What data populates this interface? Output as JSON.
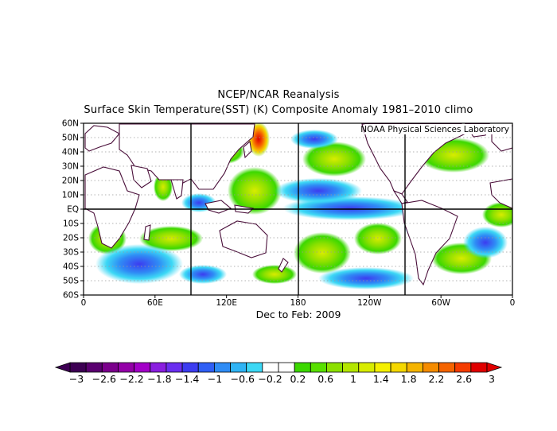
{
  "title": {
    "line1": "NCEP/NCAR Reanalysis",
    "line2": "Surface Skin Temperature(SST) (K) Composite Anomaly 1981–2010 climo"
  },
  "credit": "NOAA Physical Sciences Laboratory",
  "period": "Dec to Feb: 2009",
  "map": {
    "projection": "cylindrical",
    "lon_range": "0 to 360",
    "lat_range": "60S to 60N",
    "lat_labels": [
      "60N",
      "50N",
      "40N",
      "30N",
      "20N",
      "10N",
      "EQ",
      "10S",
      "20S",
      "30S",
      "40S",
      "50S",
      "60S"
    ],
    "lon_labels": [
      "0",
      "60E",
      "120E",
      "180",
      "120W",
      "60W",
      "0"
    ],
    "reference_lines": [
      "EQ",
      "90E",
      "180",
      "90W"
    ]
  },
  "colorbar": {
    "labels": [
      "−3",
      "−2.6",
      "−2.2",
      "−1.8",
      "−1.4",
      "−1",
      "−0.6",
      "−0.2",
      "0.2",
      "0.6",
      "1",
      "1.4",
      "1.8",
      "2.2",
      "2.6",
      "3"
    ],
    "colors": [
      "#3d0053",
      "#5a0070",
      "#7b008c",
      "#9400a8",
      "#a300c8",
      "#8a1ee0",
      "#6a2ef0",
      "#3c3cf0",
      "#2f5ff5",
      "#2f8cf5",
      "#2fb4f5",
      "#3cd8f5",
      "#ffffff",
      "#ffffff",
      "#3cd800",
      "#58e000",
      "#8ce000",
      "#b4e600",
      "#d8ec00",
      "#f5f000",
      "#f5d800",
      "#f5b400",
      "#f58c00",
      "#f56400",
      "#f53c00",
      "#e00000"
    ],
    "units": "K"
  },
  "chart_data": {
    "type": "heatmap",
    "field": "Surface Skin Temperature anomaly (K)",
    "x_range": [
      0,
      360
    ],
    "y_range": [
      -60,
      60
    ],
    "value_range": [
      -3,
      3
    ],
    "features": [
      {
        "region": "central equatorial Pacific (170E-120W, 5S-5N)",
        "anomaly": -1.6
      },
      {
        "region": "north Pacific (165W-140W, 30N-45N)",
        "anomaly": 1.0
      },
      {
        "region": "Kuroshio extension / Sea of Japan (135E-150E, 40N-55N)",
        "anomaly": 2.8
      },
      {
        "region": "western Pacific (120E-160E, 0-20N)",
        "anomaly": 0.7
      },
      {
        "region": "south Indian Ocean (50E-80E, 30S-50S)",
        "anomaly": -1.0
      },
      {
        "region": "south Pacific (150W-120W, 20S-40S)",
        "anomaly": 0.8
      },
      {
        "region": "north Atlantic (50W-20W, 35N-50N)",
        "anomaly": 1.2
      },
      {
        "region": "Southern Ocean Pacific sector (160W-100W, 50S-60S)",
        "anomaly": -1.3
      }
    ]
  }
}
